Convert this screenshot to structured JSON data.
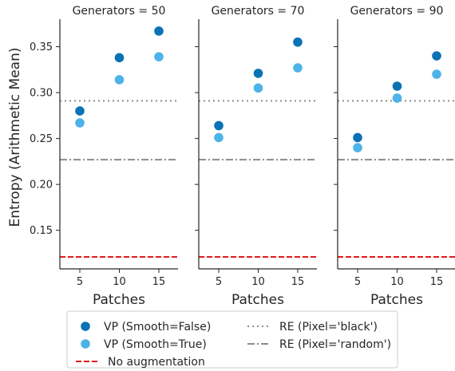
{
  "chart_data": {
    "type": "scatter",
    "ylabel": "Entropy (Arithmetic Mean)",
    "xlabel": "Patches",
    "x": [
      5,
      10,
      15
    ],
    "ylim": [
      0.108,
      0.38
    ],
    "yticks": [
      0.15,
      0.2,
      0.25,
      0.3,
      0.35
    ],
    "ytick_labels": [
      "0.15",
      "0.20",
      "0.25",
      "0.30",
      "0.35"
    ],
    "xticks": [
      5,
      10,
      15
    ],
    "xtick_labels": [
      "5",
      "10",
      "15"
    ],
    "grid": false,
    "legend_position": "bottom-center",
    "panels": [
      {
        "title": "Generators = 50",
        "series": [
          {
            "name": "VP (Smooth=False)",
            "values": [
              0.28,
              0.338,
              0.367
            ]
          },
          {
            "name": "VP (Smooth=True)",
            "values": [
              0.267,
              0.314,
              0.339
            ]
          }
        ]
      },
      {
        "title": "Generators = 70",
        "series": [
          {
            "name": "VP (Smooth=False)",
            "values": [
              0.264,
              0.321,
              0.355
            ]
          },
          {
            "name": "VP (Smooth=True)",
            "values": [
              0.251,
              0.305,
              0.327
            ]
          }
        ]
      },
      {
        "title": "Generators = 90",
        "series": [
          {
            "name": "VP (Smooth=False)",
            "values": [
              0.251,
              0.307,
              0.34
            ]
          },
          {
            "name": "VP (Smooth=True)",
            "values": [
              0.24,
              0.294,
              0.32
            ]
          }
        ]
      }
    ],
    "reference_lines": [
      {
        "name": "RE (Pixel='black')",
        "value": 0.291,
        "color": "#8c8c8c",
        "style": "dotted"
      },
      {
        "name": "RE (Pixel='random')",
        "value": 0.227,
        "color": "#8c8c8c",
        "style": "dashdot"
      },
      {
        "name": "No augmentation",
        "value": 0.121,
        "color": "#e31a1c",
        "style": "dashed"
      }
    ],
    "colors": {
      "VP (Smooth=False)": "#0a72b5",
      "VP (Smooth=True)": "#4db3e8"
    }
  }
}
